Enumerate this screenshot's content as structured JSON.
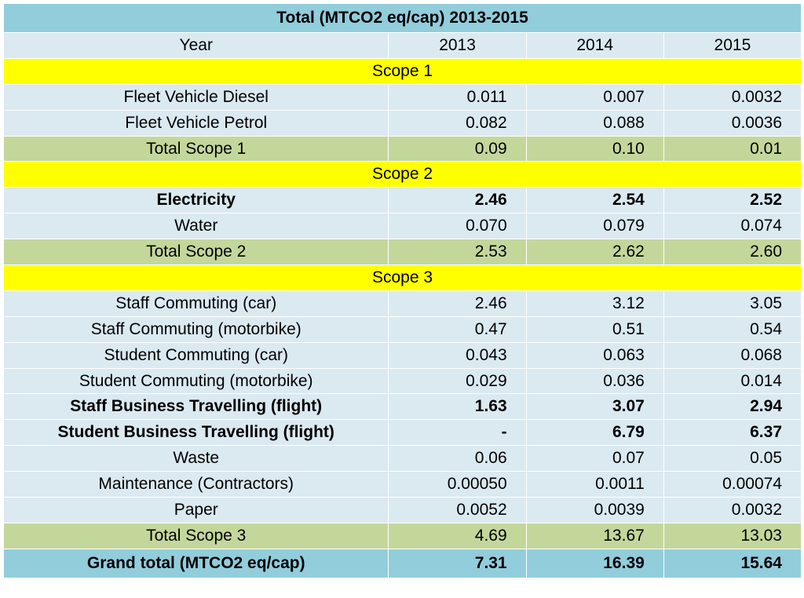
{
  "title": "Total (MTCO2 eq/cap) 2013-2015",
  "header": {
    "label": "Year",
    "years": [
      "2013",
      "2014",
      "2015"
    ]
  },
  "sections": [
    {
      "scope": "Scope 1",
      "rows": [
        {
          "label": "Fleet Vehicle Diesel",
          "values": [
            "0.011",
            "0.007",
            "0.0032"
          ],
          "bold": false
        },
        {
          "label": "Fleet Vehicle Petrol",
          "values": [
            "0.082",
            "0.088",
            "0.0036"
          ],
          "bold": false
        }
      ],
      "total": {
        "label": "Total Scope 1",
        "values": [
          "0.09",
          "0.10",
          "0.01"
        ]
      }
    },
    {
      "scope": "Scope 2",
      "rows": [
        {
          "label": "Electricity",
          "values": [
            "2.46",
            "2.54",
            "2.52"
          ],
          "bold": true
        },
        {
          "label": "Water",
          "values": [
            "0.070",
            "0.079",
            "0.074"
          ],
          "bold": false
        }
      ],
      "total": {
        "label": "Total Scope 2",
        "values": [
          "2.53",
          "2.62",
          "2.60"
        ]
      }
    },
    {
      "scope": "Scope 3",
      "rows": [
        {
          "label": "Staff Commuting (car)",
          "values": [
            "2.46",
            "3.12",
            "3.05"
          ],
          "bold": false
        },
        {
          "label": "Staff Commuting (motorbike)",
          "values": [
            "0.47",
            "0.51",
            "0.54"
          ],
          "bold": false
        },
        {
          "label": "Student Commuting (car)",
          "values": [
            "0.043",
            "0.063",
            "0.068"
          ],
          "bold": false
        },
        {
          "label": "Student Commuting (motorbike)",
          "values": [
            "0.029",
            "0.036",
            "0.014"
          ],
          "bold": false
        },
        {
          "label": "Staff Business Travelling (flight)",
          "values": [
            "1.63",
            "3.07",
            "2.94"
          ],
          "bold": true
        },
        {
          "label": "Student Business Travelling (flight)",
          "values": [
            "-",
            "6.79",
            "6.37"
          ],
          "bold": true
        },
        {
          "label": "Waste",
          "values": [
            "0.06",
            "0.07",
            "0.05"
          ],
          "bold": false
        },
        {
          "label": "Maintenance (Contractors)",
          "values": [
            "0.00050",
            "0.0011",
            "0.00074"
          ],
          "bold": false
        },
        {
          "label": "Paper",
          "values": [
            "0.0052",
            "0.0039",
            "0.0032"
          ],
          "bold": false
        }
      ],
      "total": {
        "label": "Total Scope 3",
        "values": [
          "4.69",
          "13.67",
          "13.03"
        ]
      }
    }
  ],
  "grand_total": {
    "label": "Grand total (MTCO2 eq/cap)",
    "values": [
      "7.31",
      "16.39",
      "15.64"
    ]
  },
  "colors": {
    "title_bg": "#92cddc",
    "row_bg": "#dbe9f1",
    "scope_bg": "#ffff00",
    "total_bg": "#c4d79b"
  }
}
